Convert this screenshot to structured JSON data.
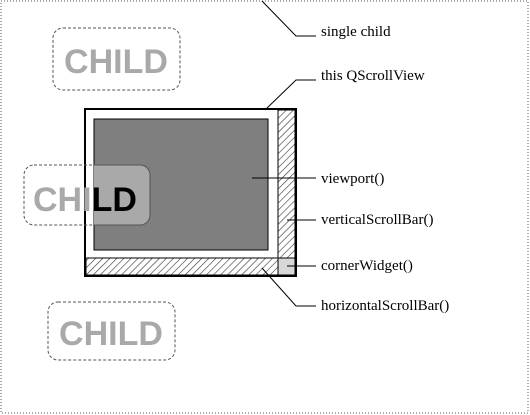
{
  "labels": {
    "single_child": "single child",
    "scrollview": "this QScrollView",
    "viewport": "viewport()",
    "vertical_scrollbar": "verticalScrollBar()",
    "corner_widget": "cornerWidget()",
    "horizontal_scrollbar": "horizontalScrollBar()"
  },
  "children": {
    "top": "CHILD",
    "middle_outside": "CHI",
    "middle_inside": "LD",
    "bottom": "CHILD"
  },
  "colors": {
    "child_text_outside": "#a9a9a9",
    "child_text_inside": "#000000",
    "viewport_fill": "#7f7f7f",
    "visible_child_fill": "#a9a9a9",
    "frame_stroke": "#000000",
    "dotted_border": "#555555"
  }
}
